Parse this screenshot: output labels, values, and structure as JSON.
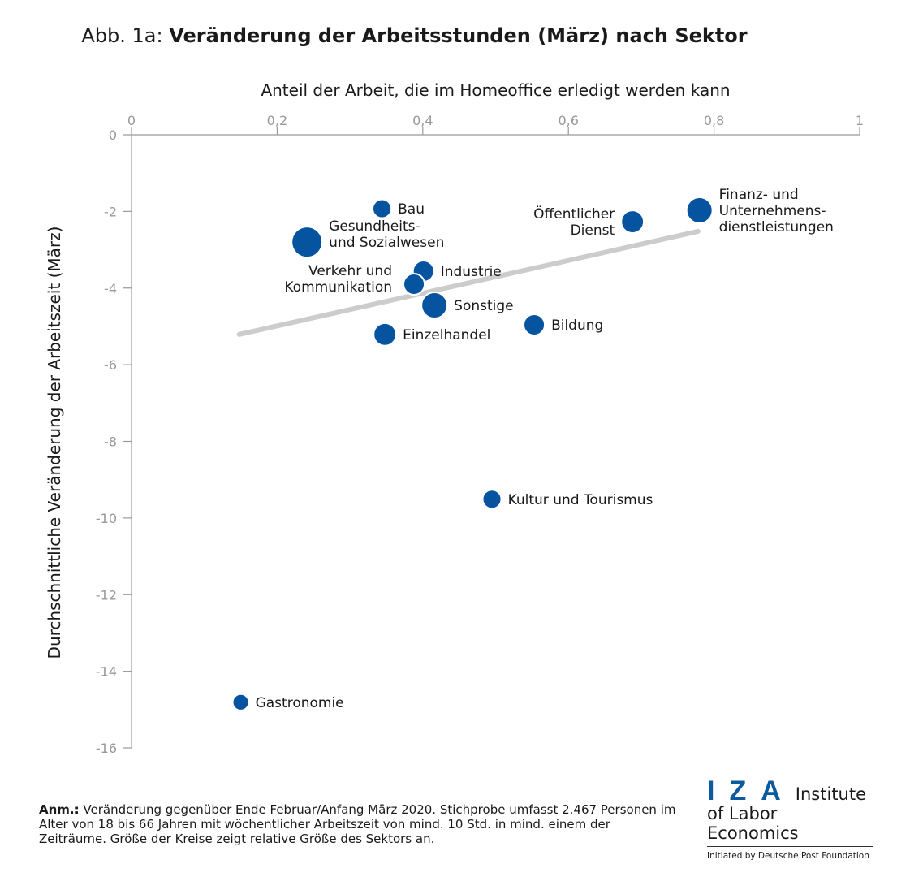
{
  "title": {
    "prefix": "Abb. 1a: ",
    "main": "Veränderung der Arbeitsstunden (März) nach Sektor"
  },
  "chart_data": {
    "type": "scatter",
    "title": "Abb. 1a: Veränderung der Arbeitsstunden (März) nach Sektor",
    "xlabel": "Anteil der Arbeit, die im Homeoffice erledigt werden kann",
    "ylabel": "Durchschnittliche Veränderung der Arbeitszeit (März)",
    "xlim": [
      0,
      1
    ],
    "ylim": [
      -16,
      0
    ],
    "x_ticks": [
      "0",
      "0,2",
      "0,4",
      "0,6",
      "0,8",
      "1"
    ],
    "x_tick_values": [
      0,
      0.2,
      0.4,
      0.6,
      0.8,
      1
    ],
    "y_ticks": [
      "0",
      "-2",
      "-4",
      "-6",
      "-8",
      "-10",
      "-12",
      "-14",
      "-16"
    ],
    "y_tick_values": [
      0,
      -2,
      -4,
      -6,
      -8,
      -10,
      -12,
      -14,
      -16
    ],
    "x_axis_position": "top",
    "grid": false,
    "point_color": "#0653a0",
    "trend_color": "#cccccc",
    "points": [
      {
        "label": [
          "Bau"
        ],
        "x": 0.344,
        "y": -1.93,
        "relative_size": 0.37
      },
      {
        "label": [
          "Gesundheits-",
          "und Sozialwesen"
        ],
        "x": 0.241,
        "y": -2.8,
        "relative_size": 1.0
      },
      {
        "label": [
          "Industrie"
        ],
        "x": 0.401,
        "y": -3.56,
        "relative_size": 0.47
      },
      {
        "label": [
          "Verkehr und",
          "Kommunikation"
        ],
        "x": 0.388,
        "y": -3.9,
        "relative_size": 0.47
      },
      {
        "label": [
          "Sonstige"
        ],
        "x": 0.416,
        "y": -4.45,
        "relative_size": 0.71
      },
      {
        "label": [
          "Einzelhandel"
        ],
        "x": 0.348,
        "y": -5.21,
        "relative_size": 0.54
      },
      {
        "label": [
          "Bildung"
        ],
        "x": 0.553,
        "y": -4.96,
        "relative_size": 0.47
      },
      {
        "label": [
          "Öffentlicher",
          "Dienst"
        ],
        "x": 0.688,
        "y": -2.27,
        "relative_size": 0.54
      },
      {
        "label": [
          "Finanz- und",
          "Unternehmens-",
          "dienstleistungen"
        ],
        "x": 0.78,
        "y": -1.97,
        "relative_size": 0.71
      },
      {
        "label": [
          "Kultur und Tourismus"
        ],
        "x": 0.495,
        "y": -9.51,
        "relative_size": 0.37
      },
      {
        "label": [
          "Gastronomie"
        ],
        "x": 0.15,
        "y": -14.81,
        "relative_size": 0.28
      }
    ],
    "trend_line": {
      "x": [
        0.148,
        0.778
      ],
      "y": [
        -5.21,
        -2.52
      ]
    }
  },
  "note": {
    "bold": "Anm.:",
    "text": " Veränderung gegenüber Ende Februar/Anfang März 2020. Stichprobe umfasst 2.467 Personen im Alter von 18 bis 66 Jahren mit wöchentlicher Arbeitszeit von mind. 10 Std. in mind. einem der Zeiträume. Größe der Kreise zeigt relative Größe des Sektors an."
  },
  "logo": {
    "mark": "IZA",
    "line1": "Institute",
    "line2": "of Labor Economics",
    "line3": "Initiated by Deutsche Post Foundation"
  }
}
